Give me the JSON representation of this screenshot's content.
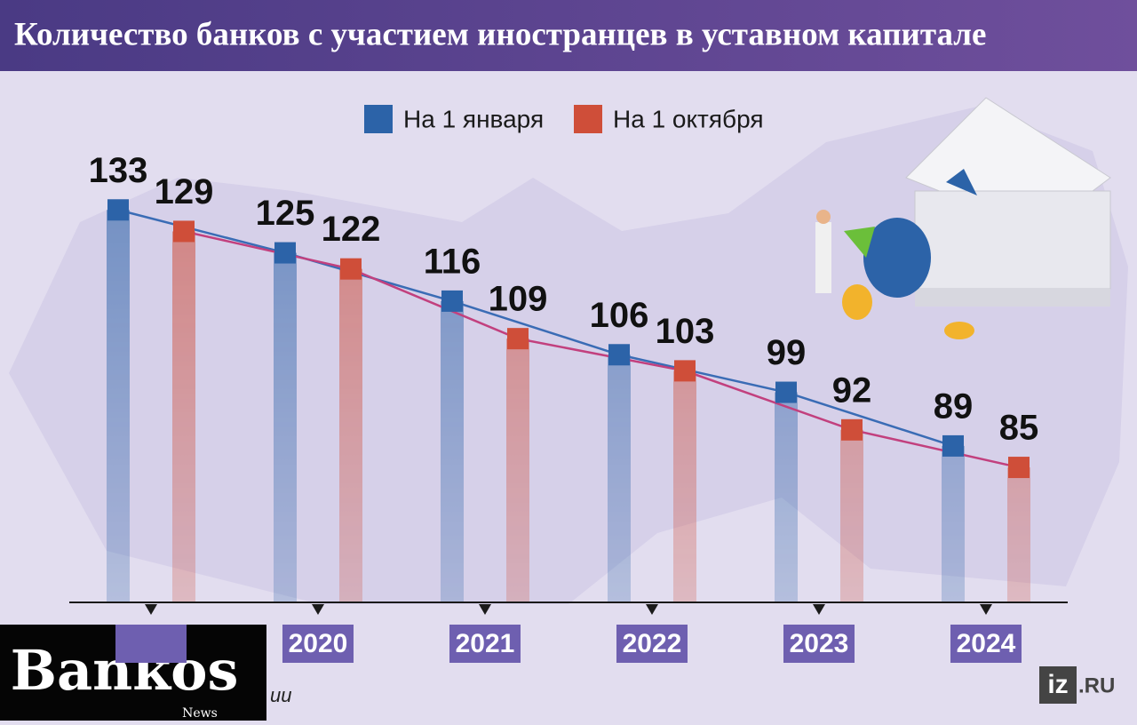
{
  "chart_data": {
    "type": "bar",
    "title": "Количество банков с участием иностранцев в уставном капитале",
    "categories": [
      null,
      "2020",
      "2021",
      "2022",
      "2023",
      "2024"
    ],
    "series": [
      {
        "name": "На 1 января",
        "color": "#2c63a8",
        "values": [
          133,
          125,
          116,
          106,
          99,
          89
        ]
      },
      {
        "name": "На 1 октября",
        "color": "#cf4e39",
        "values": [
          129,
          122,
          109,
          103,
          92,
          85
        ]
      }
    ],
    "ylim": [
      60,
      140
    ],
    "line_colors": [
      "#3a6cb5",
      "#c2407e"
    ],
    "source": "ии"
  },
  "logos": {
    "bankos": "Bankos",
    "bankos_sub": "News",
    "iz": "iz",
    "iz_domain": ".RU"
  }
}
